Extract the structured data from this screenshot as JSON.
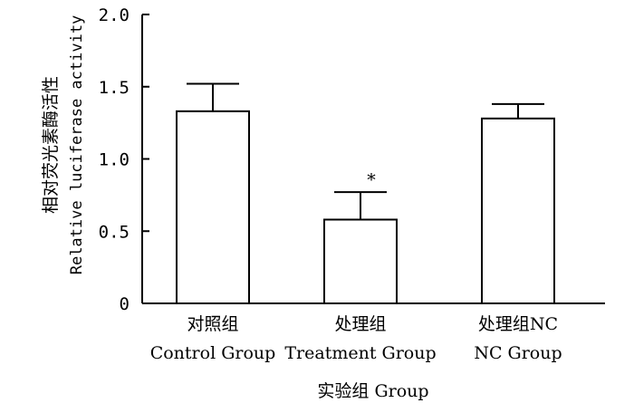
{
  "chart_data": {
    "type": "bar",
    "categories": [
      {
        "zh": "对照组",
        "en": "Control Group"
      },
      {
        "zh": "处理组",
        "en": "Treatment Group"
      },
      {
        "zh": "处理组NC",
        "en": "NC Group"
      }
    ],
    "values": [
      1.33,
      0.58,
      1.28
    ],
    "errors": [
      0.19,
      0.19,
      0.1
    ],
    "annotations": [
      "",
      "*",
      ""
    ],
    "ylabel_zh": "相对荧光素酶活性",
    "ylabel_en": "Relative luciferase activity",
    "xlabel": "实验组 Group",
    "ylim": [
      0,
      2.0
    ],
    "yticks": [
      "0",
      "0.5",
      "1.0",
      "1.5",
      "2.0"
    ],
    "ytick_values": [
      0,
      0.5,
      1.0,
      1.5,
      2.0
    ],
    "grid": false,
    "bar_color": "#ffffff",
    "edge_color": "#000000"
  }
}
